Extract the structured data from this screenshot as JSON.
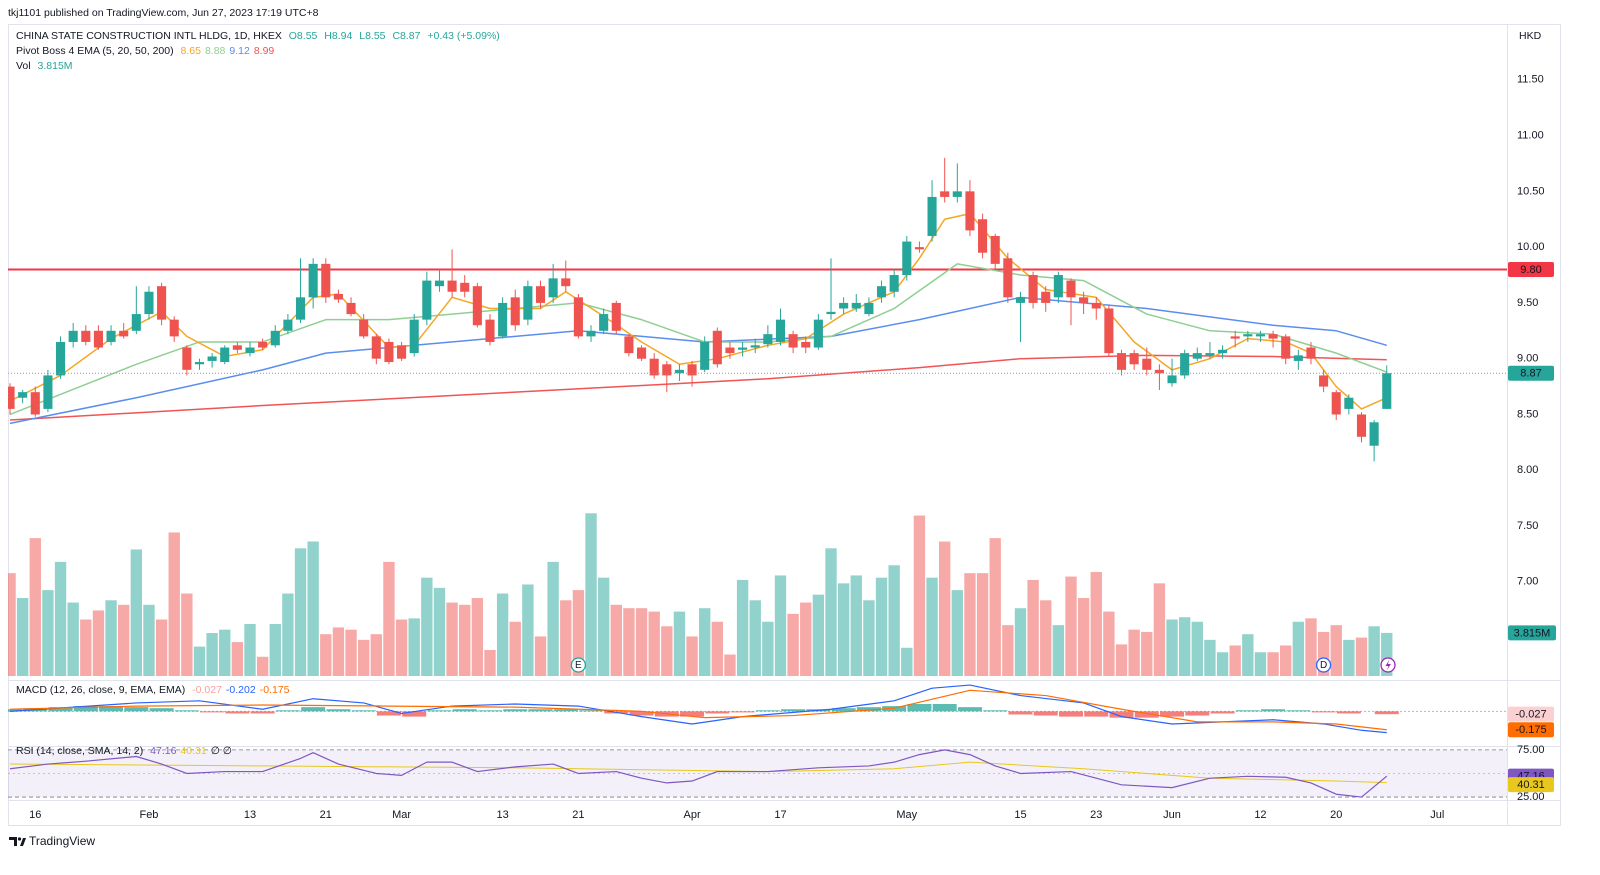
{
  "chart_data": {
    "type": "candlestick",
    "published": "tkj1101 published on TradingView.com, Jun 27, 2023 17:19 UTC+8",
    "symbol": "CHINA STATE CONSTRUCTION INTL HLDG, 1D, HKEX",
    "quote": [
      "O8.55",
      "H8.94",
      "L8.55",
      "C8.87",
      "+0.43 (+5.09%)"
    ],
    "currency": "HKD",
    "ema_title": "Pivot Boss 4 EMA (5, 20, 50, 200)",
    "volume_title": "Vol",
    "volume_label": "3.815M",
    "footer": "TradingView",
    "up_color": "#26a69a",
    "down_color": "#ef5350",
    "grid": false,
    "xlim": [
      -0.16,
      118.52
    ],
    "xticks": [
      {
        "value": 2,
        "label": "16"
      },
      {
        "value": 11,
        "label": "Feb"
      },
      {
        "value": 19,
        "label": "13"
      },
      {
        "value": 25,
        "label": "21"
      },
      {
        "value": 31,
        "label": "Mar"
      },
      {
        "value": 39,
        "label": "13"
      },
      {
        "value": 45,
        "label": "21"
      },
      {
        "value": 54,
        "label": "Apr"
      },
      {
        "value": 61,
        "label": "17"
      },
      {
        "value": 71,
        "label": "May"
      },
      {
        "value": 80,
        "label": "15"
      },
      {
        "value": 86,
        "label": "23"
      },
      {
        "value": 92,
        "label": "Jun"
      },
      {
        "value": 99,
        "label": "12"
      },
      {
        "value": 105,
        "label": "20"
      },
      {
        "value": 113,
        "label": "Jul"
      }
    ],
    "ylim": [
      6.12,
      12.0
    ],
    "yticks": [
      {
        "value": 7.0,
        "label": "7.00"
      },
      {
        "value": 7.5,
        "label": "7.50"
      },
      {
        "value": 8.0,
        "label": "8.00"
      },
      {
        "value": 8.5,
        "label": "8.50"
      },
      {
        "value": 9.0,
        "label": "9.00"
      },
      {
        "value": 9.5,
        "label": "9.50"
      },
      {
        "value": 10.0,
        "label": "10.00"
      },
      {
        "value": 10.5,
        "label": "10.50"
      },
      {
        "value": 11.0,
        "label": "11.00"
      },
      {
        "value": 11.5,
        "label": "11.50"
      }
    ],
    "ohlc": [
      [
        8.75,
        8.78,
        8.5,
        8.55
      ],
      [
        8.65,
        8.72,
        8.6,
        8.7
      ],
      [
        8.7,
        8.75,
        8.48,
        8.5
      ],
      [
        8.55,
        8.9,
        8.52,
        8.85
      ],
      [
        8.85,
        9.2,
        8.82,
        9.15
      ],
      [
        9.15,
        9.32,
        9.1,
        9.25
      ],
      [
        9.25,
        9.3,
        9.12,
        9.15
      ],
      [
        9.25,
        9.3,
        9.08,
        9.1
      ],
      [
        9.15,
        9.3,
        9.12,
        9.25
      ],
      [
        9.25,
        9.32,
        9.18,
        9.2
      ],
      [
        9.25,
        9.65,
        9.22,
        9.4
      ],
      [
        9.4,
        9.65,
        9.35,
        9.6
      ],
      [
        9.65,
        9.68,
        9.3,
        9.35
      ],
      [
        9.35,
        9.38,
        9.15,
        9.2
      ],
      [
        9.1,
        9.12,
        8.85,
        8.9
      ],
      [
        8.95,
        9.0,
        8.9,
        8.97
      ],
      [
        8.98,
        9.05,
        8.92,
        9.02
      ],
      [
        8.97,
        9.12,
        8.95,
        9.1
      ],
      [
        9.12,
        9.15,
        9.05,
        9.08
      ],
      [
        9.05,
        9.15,
        9.02,
        9.1
      ],
      [
        9.15,
        9.18,
        9.08,
        9.1
      ],
      [
        9.12,
        9.3,
        9.1,
        9.25
      ],
      [
        9.25,
        9.4,
        9.22,
        9.35
      ],
      [
        9.35,
        9.9,
        9.32,
        9.55
      ],
      [
        9.55,
        9.9,
        9.45,
        9.85
      ],
      [
        9.85,
        9.9,
        9.5,
        9.55
      ],
      [
        9.58,
        9.62,
        9.5,
        9.53
      ],
      [
        9.5,
        9.55,
        9.38,
        9.4
      ],
      [
        9.35,
        9.4,
        9.18,
        9.2
      ],
      [
        9.2,
        9.22,
        8.95,
        9.0
      ],
      [
        9.15,
        9.18,
        8.95,
        8.97
      ],
      [
        9.12,
        9.15,
        8.98,
        9.0
      ],
      [
        9.05,
        9.4,
        9.02,
        9.35
      ],
      [
        9.35,
        9.78,
        9.3,
        9.7
      ],
      [
        9.65,
        9.8,
        9.6,
        9.7
      ],
      [
        9.7,
        9.98,
        9.55,
        9.6
      ],
      [
        9.68,
        9.75,
        9.55,
        9.6
      ],
      [
        9.65,
        9.68,
        9.28,
        9.3
      ],
      [
        9.35,
        9.4,
        9.12,
        9.15
      ],
      [
        9.2,
        9.55,
        9.18,
        9.5
      ],
      [
        9.55,
        9.62,
        9.25,
        9.3
      ],
      [
        9.35,
        9.7,
        9.3,
        9.65
      ],
      [
        9.65,
        9.7,
        9.45,
        9.5
      ],
      [
        9.55,
        9.85,
        9.5,
        9.72
      ],
      [
        9.72,
        9.88,
        9.6,
        9.65
      ],
      [
        9.55,
        9.58,
        9.18,
        9.2
      ],
      [
        9.2,
        9.3,
        9.15,
        9.25
      ],
      [
        9.25,
        9.45,
        9.22,
        9.4
      ],
      [
        9.5,
        9.52,
        9.22,
        9.25
      ],
      [
        9.2,
        9.22,
        9.02,
        9.05
      ],
      [
        9.1,
        9.12,
        8.98,
        9.0
      ],
      [
        9.0,
        9.05,
        8.82,
        8.85
      ],
      [
        8.95,
        8.98,
        8.7,
        8.85
      ],
      [
        8.87,
        8.95,
        8.8,
        8.9
      ],
      [
        8.95,
        8.98,
        8.75,
        8.85
      ],
      [
        8.9,
        9.2,
        8.88,
        9.15
      ],
      [
        9.25,
        9.28,
        8.92,
        8.95
      ],
      [
        9.1,
        9.15,
        9.0,
        9.05
      ],
      [
        9.08,
        9.15,
        9.02,
        9.1
      ],
      [
        9.1,
        9.18,
        9.05,
        9.12
      ],
      [
        9.13,
        9.3,
        9.1,
        9.22
      ],
      [
        9.15,
        9.45,
        9.12,
        9.35
      ],
      [
        9.22,
        9.25,
        9.05,
        9.1
      ],
      [
        9.15,
        9.2,
        9.05,
        9.1
      ],
      [
        9.1,
        9.4,
        9.08,
        9.35
      ],
      [
        9.4,
        9.9,
        9.35,
        9.42
      ],
      [
        9.45,
        9.55,
        9.4,
        9.5
      ],
      [
        9.45,
        9.58,
        9.42,
        9.5
      ],
      [
        9.4,
        9.55,
        9.38,
        9.5
      ],
      [
        9.55,
        9.7,
        9.5,
        9.65
      ],
      [
        9.6,
        9.8,
        9.55,
        9.75
      ],
      [
        9.75,
        10.1,
        9.7,
        10.05
      ],
      [
        10.0,
        10.05,
        9.95,
        9.98
      ],
      [
        10.1,
        10.6,
        10.05,
        10.45
      ],
      [
        10.5,
        10.8,
        10.4,
        10.45
      ],
      [
        10.45,
        10.75,
        10.4,
        10.5
      ],
      [
        10.5,
        10.6,
        10.1,
        10.15
      ],
      [
        10.25,
        10.3,
        9.9,
        9.95
      ],
      [
        10.1,
        10.12,
        9.8,
        9.85
      ],
      [
        9.9,
        9.95,
        9.5,
        9.55
      ],
      [
        9.5,
        9.6,
        9.15,
        9.55
      ],
      [
        9.75,
        9.78,
        9.45,
        9.5
      ],
      [
        9.6,
        9.65,
        9.42,
        9.5
      ],
      [
        9.55,
        9.78,
        9.5,
        9.75
      ],
      [
        9.7,
        9.72,
        9.3,
        9.55
      ],
      [
        9.55,
        9.6,
        9.4,
        9.5
      ],
      [
        9.5,
        9.55,
        9.35,
        9.45
      ],
      [
        9.45,
        9.48,
        9.02,
        9.05
      ],
      [
        9.05,
        9.08,
        8.85,
        8.9
      ],
      [
        9.05,
        9.08,
        8.9,
        8.95
      ],
      [
        9.0,
        9.1,
        8.85,
        8.9
      ],
      [
        8.9,
        8.95,
        8.72,
        8.87
      ],
      [
        8.78,
        9.0,
        8.75,
        8.85
      ],
      [
        8.85,
        9.08,
        8.82,
        9.05
      ],
      [
        9.0,
        9.1,
        8.98,
        9.05
      ],
      [
        9.03,
        9.15,
        9.0,
        9.05
      ],
      [
        9.05,
        9.12,
        9.0,
        9.08
      ],
      [
        9.2,
        9.25,
        9.1,
        9.18
      ],
      [
        9.2,
        9.25,
        9.15,
        9.22
      ],
      [
        9.2,
        9.25,
        9.15,
        9.22
      ],
      [
        9.22,
        9.25,
        9.1,
        9.18
      ],
      [
        9.2,
        9.22,
        8.95,
        9.0
      ],
      [
        8.98,
        9.08,
        8.9,
        9.03
      ],
      [
        9.1,
        9.15,
        8.95,
        9.0
      ],
      [
        8.85,
        8.9,
        8.7,
        8.75
      ],
      [
        8.7,
        8.72,
        8.45,
        8.5
      ],
      [
        8.55,
        8.68,
        8.5,
        8.65
      ],
      [
        8.5,
        8.52,
        8.25,
        8.3
      ],
      [
        8.22,
        8.45,
        8.08,
        8.43
      ],
      [
        8.55,
        8.94,
        8.55,
        8.87
      ]
    ],
    "volume_ylim": [
      0,
      20
    ],
    "volume": [
      9.1,
      6.9,
      12.2,
      7.6,
      10.1,
      6.5,
      5.0,
      5.8,
      6.7,
      6.3,
      11.2,
      6.3,
      5.0,
      12.7,
      7.3,
      2.6,
      3.8,
      4.1,
      3.0,
      4.6,
      1.7,
      4.6,
      7.3,
      11.3,
      11.9,
      3.7,
      4.3,
      4.1,
      3.2,
      3.7,
      10.1,
      5.0,
      5.1,
      8.7,
      7.8,
      6.5,
      6.3,
      6.9,
      2.3,
      7.3,
      4.8,
      8.1,
      3.5,
      10.1,
      6.7,
      7.6,
      14.4,
      8.7,
      6.3,
      6.0,
      6.0,
      5.7,
      4.4,
      5.7,
      3.5,
      6.0,
      4.8,
      1.9,
      8.5,
      6.7,
      4.8,
      8.9,
      5.5,
      6.5,
      7.2,
      11.3,
      8.2,
      8.9,
      6.7,
      8.7,
      9.8,
      2.5,
      14.2,
      8.7,
      11.9,
      7.6,
      9.1,
      9.1,
      12.2,
      4.5,
      6.0,
      8.5,
      6.7,
      4.5,
      8.8,
      6.9,
      9.2,
      5.7,
      2.8,
      4.1,
      3.9,
      8.2,
      5.0,
      5.2,
      4.8,
      3.2,
      2.1,
      2.7,
      3.7,
      2.1,
      2.1,
      2.7,
      4.8,
      5.1,
      3.9,
      4.5,
      3.2,
      3.4,
      4.4,
      3.815
    ],
    "emas": [
      {
        "color": "#f5a623",
        "x": [
          0,
          4,
          8,
          12,
          14,
          17,
          20,
          24,
          26,
          30,
          32,
          35,
          38,
          42,
          44,
          47,
          50,
          53,
          56,
          60,
          63,
          66,
          70,
          72,
          74,
          76,
          79,
          82,
          86,
          89,
          92,
          95,
          98,
          101,
          103,
          105,
          107,
          109
        ],
        "values": [
          8.62,
          8.85,
          9.18,
          9.42,
          9.2,
          9.02,
          9.08,
          9.55,
          9.58,
          9.1,
          9.12,
          9.55,
          9.45,
          9.45,
          9.6,
          9.38,
          9.15,
          8.95,
          9.0,
          9.12,
          9.18,
          9.4,
          9.6,
          9.9,
          10.25,
          10.3,
          9.9,
          9.62,
          9.55,
          9.15,
          8.9,
          9.0,
          9.18,
          9.15,
          9.05,
          8.75,
          8.55,
          8.65
        ]
      },
      {
        "color": "#8fcf92",
        "x": [
          0,
          10,
          15,
          20,
          25,
          30,
          35,
          40,
          45,
          50,
          55,
          60,
          65,
          70,
          75,
          80,
          85,
          90,
          95,
          100,
          105,
          109
        ],
        "values": [
          8.5,
          8.95,
          9.15,
          9.15,
          9.35,
          9.35,
          9.4,
          9.45,
          9.5,
          9.35,
          9.15,
          9.15,
          9.2,
          9.45,
          9.85,
          9.75,
          9.7,
          9.4,
          9.25,
          9.22,
          9.05,
          8.88
        ]
      },
      {
        "color": "#5b8def",
        "x": [
          0,
          10,
          20,
          25,
          30,
          40,
          45,
          55,
          65,
          72,
          80,
          90,
          100,
          105,
          109
        ],
        "values": [
          8.42,
          8.65,
          8.9,
          9.05,
          9.1,
          9.2,
          9.25,
          9.15,
          9.2,
          9.35,
          9.55,
          9.45,
          9.3,
          9.25,
          9.12
        ]
      },
      {
        "color": "#f05454",
        "x": [
          0,
          20,
          40,
          60,
          72,
          80,
          90,
          100,
          109
        ],
        "values": [
          8.45,
          8.58,
          8.7,
          8.82,
          8.92,
          9.0,
          9.03,
          9.02,
          8.99
        ]
      }
    ],
    "hline": {
      "value": 9.8,
      "label": "9.80",
      "color": "#f23645"
    },
    "events": [
      {
        "x": 45,
        "label": "E",
        "color": "#26a69a"
      },
      {
        "x": 104,
        "label": "D",
        "color": "#2962ff"
      }
    ],
    "macd": {
      "title": "MACD (12, 26, close, 9, EMA, EMA)",
      "ylim": [
        -0.32,
        0.26
      ],
      "hist": {
        "x": [
          0,
          2,
          4,
          6,
          8,
          10,
          12,
          14,
          16,
          18,
          20,
          22,
          24,
          26,
          28,
          30,
          32,
          34,
          36,
          38,
          40,
          42,
          44,
          46,
          48,
          50,
          52,
          54,
          56,
          58,
          60,
          62,
          64,
          66,
          68,
          70,
          72,
          74,
          76,
          78,
          80,
          82,
          84,
          86,
          88,
          90,
          92,
          94,
          96,
          98,
          100,
          102,
          104,
          106,
          109
        ],
        "values": [
          0.02,
          0.03,
          0.04,
          0.05,
          0.05,
          0.04,
          0.03,
          0.01,
          -0.01,
          -0.02,
          -0.02,
          0.01,
          0.04,
          0.02,
          0.01,
          -0.04,
          -0.05,
          0.01,
          0.02,
          0.01,
          0.02,
          0.02,
          0.02,
          0.01,
          -0.02,
          -0.04,
          -0.05,
          -0.05,
          -0.02,
          -0.01,
          0.01,
          0.02,
          0.02,
          0.03,
          0.04,
          0.05,
          0.07,
          0.07,
          0.04,
          0.01,
          -0.03,
          -0.04,
          -0.05,
          -0.05,
          -0.06,
          -0.06,
          -0.05,
          -0.04,
          -0.02,
          0.01,
          0.02,
          0.01,
          -0.01,
          -0.02,
          -0.027
        ]
      },
      "macd_line": {
        "color": "#2962ff",
        "x": [
          0,
          10,
          15,
          20,
          24,
          28,
          31,
          35,
          40,
          45,
          50,
          54,
          58,
          65,
          70,
          73,
          76,
          80,
          85,
          88,
          92,
          96,
          100,
          104,
          107,
          109
        ],
        "values": [
          0.0,
          0.08,
          0.1,
          0.02,
          0.12,
          0.08,
          -0.02,
          0.05,
          0.07,
          0.05,
          -0.05,
          -0.12,
          -0.05,
          0.02,
          0.1,
          0.22,
          0.25,
          0.15,
          0.08,
          -0.05,
          -0.12,
          -0.1,
          -0.08,
          -0.12,
          -0.18,
          -0.202
        ]
      },
      "signal": {
        "color": "#ff6d00",
        "x": [
          0,
          10,
          20,
          30,
          40,
          50,
          55,
          62,
          70,
          76,
          82,
          88,
          94,
          100,
          105,
          109
        ],
        "values": [
          0.02,
          0.05,
          0.06,
          0.05,
          0.04,
          0.0,
          -0.06,
          -0.04,
          0.03,
          0.2,
          0.15,
          0.02,
          -0.1,
          -0.1,
          -0.12,
          -0.175
        ]
      }
    },
    "rsi": {
      "title": "RSI (14, close, SMA, 14, 2)",
      "extra": "∅ ∅",
      "ylim": [
        24,
        77
      ],
      "yticks": [
        {
          "value": 75,
          "label": "75.00"
        },
        {
          "value": 25,
          "label": "25.00"
        }
      ],
      "rsi_line": {
        "color": "#7e57c2",
        "x": [
          0,
          3,
          6,
          10,
          12,
          14,
          17,
          20,
          23,
          24,
          26,
          29,
          31,
          33,
          35,
          37,
          40,
          43,
          45,
          48,
          50,
          52,
          54,
          56,
          60,
          64,
          68,
          70,
          72,
          74,
          76,
          78,
          80,
          84,
          88,
          92,
          95,
          98,
          101,
          103,
          105,
          107,
          109
        ],
        "values": [
          55,
          60,
          63,
          68,
          60,
          50,
          52,
          52,
          66,
          72,
          60,
          50,
          48,
          62,
          62,
          52,
          57,
          60,
          50,
          52,
          45,
          40,
          42,
          52,
          52,
          56,
          58,
          62,
          70,
          75,
          70,
          58,
          50,
          52,
          38,
          35,
          45,
          47,
          46,
          40,
          28,
          25,
          47.16
        ]
      },
      "sma": {
        "color": "#e8c81e",
        "x": [
          0,
          20,
          40,
          60,
          70,
          76,
          85,
          95,
          105,
          109
        ],
        "values": [
          60,
          58,
          56,
          52,
          55,
          62,
          55,
          45,
          42,
          40.31
        ]
      }
    }
  }
}
